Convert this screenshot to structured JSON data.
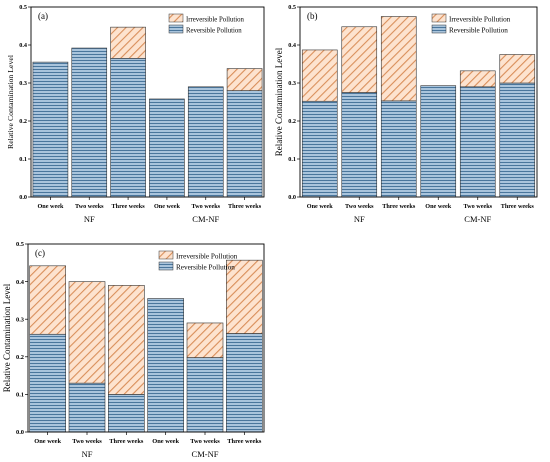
{
  "chart_data": [
    {
      "type": "bar",
      "panel_label": "(a)",
      "stacked": true,
      "ylabel": "Relative Contamination Level",
      "ylim": [
        0,
        0.5
      ],
      "yticks": [
        "0.0",
        "0.1",
        "0.2",
        "0.3",
        "0.4",
        "0.5"
      ],
      "categories": [
        "One week",
        "Two weeks",
        "Three weeks",
        "One week",
        "Two weeks",
        "Three weeks"
      ],
      "groups": [
        "NF",
        "CM-NF"
      ],
      "legend_position": "top-right",
      "series": [
        {
          "name": "Reversible Pollution",
          "values": [
            0.355,
            0.392,
            0.365,
            0.258,
            0.29,
            0.28
          ]
        },
        {
          "name": "Irreversible Pollution",
          "values": [
            0,
            0,
            0.082,
            0,
            0,
            0.058
          ]
        }
      ]
    },
    {
      "type": "bar",
      "panel_label": "(b)",
      "stacked": true,
      "ylabel": "Relative Contamination Level",
      "ylim": [
        0,
        0.5
      ],
      "yticks": [
        "0.0",
        "0.1",
        "0.2",
        "0.3",
        "0.4",
        "0.5"
      ],
      "categories": [
        "One week",
        "Two weeks",
        "Three weeks",
        "One week",
        "Two weeks",
        "Three weeks"
      ],
      "groups": [
        "NF",
        "CM-NF"
      ],
      "legend_position": "top-right",
      "series": [
        {
          "name": "Reversible Pollution",
          "values": [
            0.252,
            0.275,
            0.253,
            0.293,
            0.29,
            0.3
          ]
        },
        {
          "name": "Irreversible Pollution",
          "values": [
            0.135,
            0.173,
            0.222,
            0,
            0.042,
            0.075
          ]
        }
      ]
    },
    {
      "type": "bar",
      "panel_label": "(c)",
      "stacked": true,
      "ylabel": "Relative Contamination Level",
      "ylim": [
        0,
        0.5
      ],
      "yticks": [
        "0.0",
        "0.1",
        "0.2",
        "0.3",
        "0.4",
        "0.5"
      ],
      "categories": [
        "One week",
        "Two weeks",
        "Three weeks",
        "One week",
        "Two weeks",
        "Three weeks"
      ],
      "groups": [
        "NF",
        "CM-NF"
      ],
      "legend_position": "top-right",
      "series": [
        {
          "name": "Reversible Pollution",
          "values": [
            0.26,
            0.13,
            0.1,
            0.355,
            0.198,
            0.262
          ]
        },
        {
          "name": "Irreversible Pollution",
          "values": [
            0.182,
            0.27,
            0.29,
            0,
            0.092,
            0.195
          ]
        }
      ]
    }
  ],
  "colors": {
    "reversible_fill": "#a9c4dc",
    "reversible_stripe": "#3f6d95",
    "irreversible_fill": "#fde3cf",
    "irreversible_hatch": "#d98e5a"
  }
}
